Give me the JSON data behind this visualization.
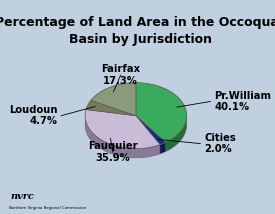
{
  "title": "Percentage of Land Area in the Occoquan\nBasin by Jurisdiction",
  "slices": [
    40.1,
    2.0,
    35.9,
    4.7,
    17.3
  ],
  "colors": [
    "#3aaa5c",
    "#1a2a8c",
    "#c8bcd8",
    "#7a7a5a",
    "#8a9a7a"
  ],
  "colors_dark": [
    "#1e6e38",
    "#0d1650",
    "#8a7a9a",
    "#4a4a2a",
    "#5a6a4a"
  ],
  "startangle": 90,
  "background_color": "#c0d0e0",
  "title_fontsize": 9.0,
  "label_fontsize": 7.2
}
